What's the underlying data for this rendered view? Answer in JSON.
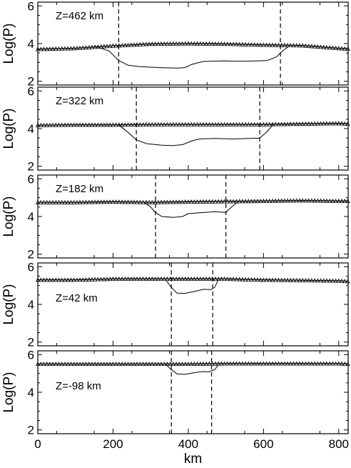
{
  "chart_data": {
    "type": "line",
    "xlabel": "km",
    "ylabel": "Log(P)",
    "xlim": [
      0,
      825
    ],
    "ylim": [
      2,
      6.2
    ],
    "xticks": [
      0,
      200,
      400,
      600,
      800
    ],
    "yticks": [
      2,
      4,
      6
    ],
    "panels": [
      {
        "label": "Z=462 km",
        "dashed_x": [
          215,
          645
        ],
        "series": [
          {
            "style": "triangles",
            "points": [
              [
                0,
                3.7
              ],
              [
                100,
                3.75
              ],
              [
                200,
                3.88
              ],
              [
                300,
                3.98
              ],
              [
                400,
                4.0
              ],
              [
                500,
                3.98
              ],
              [
                600,
                3.93
              ],
              [
                700,
                3.9
              ],
              [
                800,
                3.75
              ],
              [
                825,
                3.72
              ]
            ]
          },
          {
            "style": "line",
            "points": [
              [
                150,
                3.88
              ],
              [
                190,
                3.6
              ],
              [
                215,
                3.1
              ],
              [
                240,
                2.85
              ],
              [
                270,
                2.78
              ],
              [
                330,
                2.72
              ],
              [
                370,
                2.7
              ],
              [
                390,
                2.72
              ],
              [
                410,
                2.9
              ],
              [
                440,
                3.05
              ],
              [
                490,
                3.08
              ],
              [
                540,
                3.06
              ],
              [
                580,
                3.08
              ],
              [
                610,
                3.1
              ],
              [
                635,
                3.3
              ],
              [
                650,
                3.6
              ],
              [
                665,
                3.82
              ]
            ]
          }
        ]
      },
      {
        "label": "Z=322 km",
        "dashed_x": [
          262,
          590
        ],
        "series": [
          {
            "style": "triangles",
            "points": [
              [
                0,
                4.18
              ],
              [
                100,
                4.2
              ],
              [
                200,
                4.2
              ],
              [
                300,
                4.22
              ],
              [
                400,
                4.22
              ],
              [
                500,
                4.22
              ],
              [
                600,
                4.22
              ],
              [
                700,
                4.25
              ],
              [
                800,
                4.28
              ],
              [
                825,
                4.25
              ]
            ]
          },
          {
            "style": "line",
            "points": [
              [
                215,
                4.2
              ],
              [
                240,
                3.8
              ],
              [
                262,
                3.4
              ],
              [
                290,
                3.2
              ],
              [
                330,
                3.12
              ],
              [
                360,
                3.1
              ],
              [
                385,
                3.15
              ],
              [
                410,
                3.35
              ],
              [
                430,
                3.45
              ],
              [
                470,
                3.48
              ],
              [
                520,
                3.45
              ],
              [
                560,
                3.48
              ],
              [
                590,
                3.5
              ],
              [
                610,
                3.85
              ],
              [
                625,
                4.2
              ]
            ]
          }
        ]
      },
      {
        "label": "Z=182 km",
        "dashed_x": [
          313,
          500
        ],
        "series": [
          {
            "style": "triangles",
            "points": [
              [
                0,
                4.75
              ],
              [
                100,
                4.75
              ],
              [
                200,
                4.78
              ],
              [
                300,
                4.75
              ],
              [
                400,
                4.78
              ],
              [
                500,
                4.8
              ],
              [
                600,
                4.82
              ],
              [
                700,
                4.85
              ],
              [
                800,
                4.82
              ],
              [
                825,
                4.82
              ]
            ]
          },
          {
            "style": "line",
            "points": [
              [
                285,
                4.72
              ],
              [
                300,
                4.5
              ],
              [
                313,
                4.2
              ],
              [
                330,
                4.0
              ],
              [
                360,
                3.95
              ],
              [
                385,
                4.0
              ],
              [
                400,
                4.15
              ],
              [
                430,
                4.2
              ],
              [
                470,
                4.25
              ],
              [
                500,
                4.22
              ],
              [
                515,
                4.5
              ],
              [
                530,
                4.75
              ]
            ]
          }
        ]
      },
      {
        "label": "Z=42 km",
        "dashed_x": [
          355,
          465
        ],
        "series": [
          {
            "style": "triangles",
            "points": [
              [
                0,
                5.3
              ],
              [
                100,
                5.3
              ],
              [
                200,
                5.35
              ],
              [
                300,
                5.35
              ],
              [
                400,
                5.35
              ],
              [
                500,
                5.35
              ],
              [
                600,
                5.3
              ],
              [
                700,
                5.28
              ],
              [
                800,
                5.25
              ],
              [
                825,
                5.22
              ]
            ]
          },
          {
            "style": "line",
            "points": [
              [
                340,
                5.3
              ],
              [
                355,
                4.9
              ],
              [
                370,
                4.6
              ],
              [
                390,
                4.58
              ],
              [
                420,
                4.7
              ],
              [
                440,
                4.8
              ],
              [
                460,
                4.78
              ],
              [
                470,
                4.9
              ],
              [
                480,
                5.3
              ]
            ]
          }
        ]
      },
      {
        "label": "Z=-98 km",
        "dashed_x": [
          355,
          462
        ],
        "series": [
          {
            "style": "triangles",
            "points": [
              [
                0,
                5.5
              ],
              [
                100,
                5.5
              ],
              [
                200,
                5.5
              ],
              [
                300,
                5.5
              ],
              [
                400,
                5.5
              ],
              [
                500,
                5.52
              ],
              [
                600,
                5.52
              ],
              [
                700,
                5.52
              ],
              [
                800,
                5.52
              ],
              [
                825,
                5.5
              ]
            ]
          },
          {
            "style": "line",
            "points": [
              [
                340,
                5.48
              ],
              [
                355,
                5.2
              ],
              [
                370,
                4.98
              ],
              [
                390,
                4.95
              ],
              [
                420,
                5.05
              ],
              [
                440,
                5.1
              ],
              [
                455,
                5.08
              ],
              [
                470,
                5.2
              ],
              [
                480,
                5.45
              ]
            ]
          }
        ]
      }
    ]
  }
}
